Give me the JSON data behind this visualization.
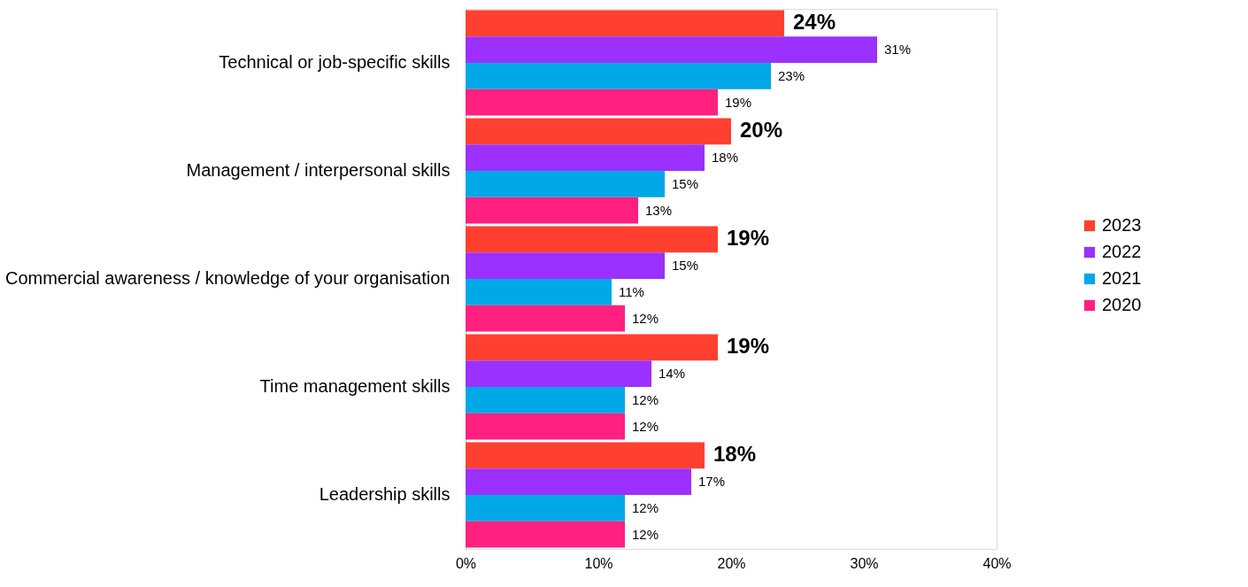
{
  "chart_data": {
    "type": "bar",
    "orientation": "horizontal",
    "categories": [
      "Technical or job-specific skills",
      "Management / interpersonal skills",
      "Commercial awareness / knowledge of your organisation",
      "Time management skills",
      "Leadership skills"
    ],
    "series": [
      {
        "name": "2023",
        "color": "#ff4030",
        "values": [
          24,
          20,
          19,
          19,
          18
        ],
        "value_labels": [
          "24%",
          "20%",
          "19%",
          "19%",
          "18%"
        ]
      },
      {
        "name": "2022",
        "color": "#9b30ff",
        "values": [
          31,
          18,
          15,
          14,
          17
        ],
        "value_labels": [
          "31%",
          "18%",
          "15%",
          "14%",
          "17%"
        ]
      },
      {
        "name": "2021",
        "color": "#00a8e8",
        "values": [
          23,
          15,
          11,
          12,
          12
        ],
        "value_labels": [
          "23%",
          "15%",
          "11%",
          "12%",
          "12%"
        ]
      },
      {
        "name": "2020",
        "color": "#ff2080",
        "values": [
          19,
          13,
          12,
          12,
          12
        ],
        "value_labels": [
          "19%",
          "13%",
          "12%",
          "12%",
          "12%"
        ]
      }
    ],
    "xlim": [
      0,
      40
    ],
    "xticks": [
      {
        "value": 0,
        "label": "0%"
      },
      {
        "value": 10,
        "label": "10%"
      },
      {
        "value": 20,
        "label": "20%"
      },
      {
        "value": 30,
        "label": "30%"
      },
      {
        "value": 40,
        "label": "40%"
      }
    ],
    "grid": false,
    "legend": "right"
  }
}
